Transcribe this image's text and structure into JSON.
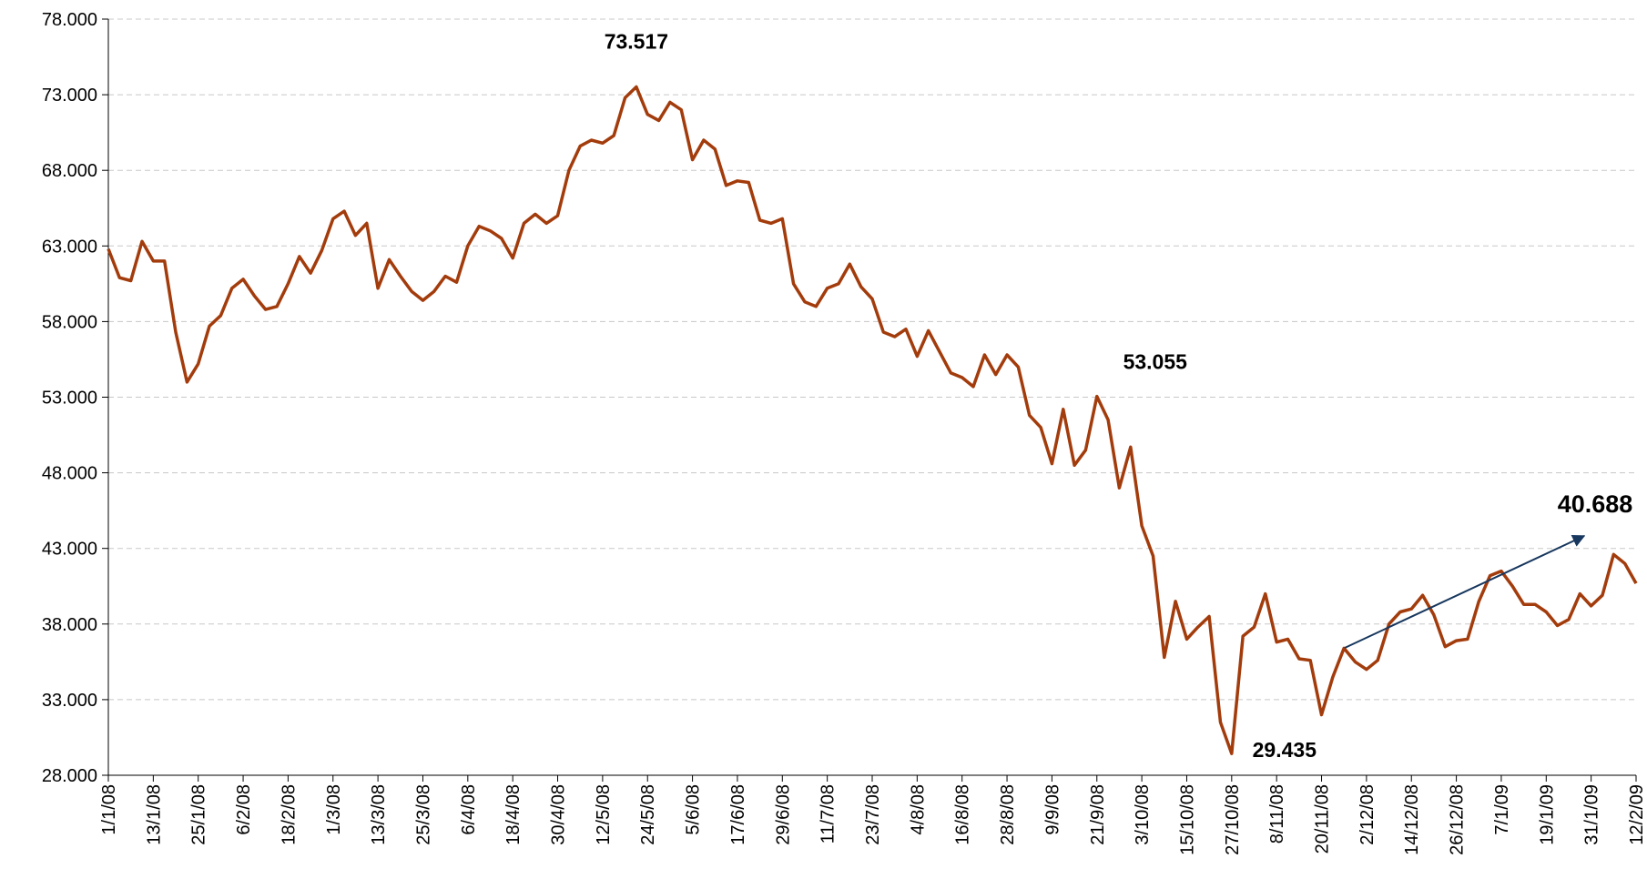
{
  "chart_data": {
    "type": "line",
    "categories": [
      "1/1/08",
      null,
      null,
      null,
      "13/1/08",
      null,
      null,
      null,
      "25/1/08",
      null,
      null,
      null,
      "6/2/08",
      null,
      null,
      null,
      "18/2/08",
      null,
      null,
      null,
      "1/3/08",
      null,
      null,
      null,
      "13/3/08",
      null,
      null,
      null,
      "25/3/08",
      null,
      null,
      null,
      "6/4/08",
      null,
      null,
      null,
      "18/4/08",
      null,
      null,
      null,
      "30/4/08",
      null,
      null,
      null,
      "12/5/08",
      null,
      null,
      null,
      "24/5/08",
      null,
      null,
      null,
      "5/6/08",
      null,
      null,
      null,
      "17/6/08",
      null,
      null,
      null,
      "29/6/08",
      null,
      null,
      null,
      "11/7/08",
      null,
      null,
      null,
      "23/7/08",
      null,
      null,
      null,
      "4/8/08",
      null,
      null,
      null,
      "16/8/08",
      null,
      null,
      null,
      "28/8/08",
      null,
      null,
      null,
      "9/9/08",
      null,
      null,
      null,
      "21/9/08",
      null,
      null,
      null,
      "3/10/08",
      null,
      null,
      null,
      "15/10/08",
      null,
      null,
      null,
      "27/10/08",
      null,
      null,
      null,
      "8/11/08",
      null,
      null,
      null,
      "20/11/08",
      null,
      null,
      null,
      "2/12/08",
      null,
      null,
      null,
      "14/12/08",
      null,
      null,
      null,
      "26/12/08",
      null,
      null,
      null,
      "7/1/09",
      null,
      null,
      null,
      "19/1/09",
      null,
      null,
      null,
      "31/1/09",
      null,
      null,
      null,
      "12/2/09"
    ],
    "series": [
      {
        "color": "#a33c0c",
        "values": [
          62.8,
          60.9,
          60.7,
          63.3,
          62.0,
          62.0,
          57.3,
          54.0,
          55.2,
          57.7,
          58.4,
          60.2,
          60.8,
          59.7,
          58.8,
          59.0,
          60.5,
          62.3,
          61.2,
          62.7,
          64.8,
          65.3,
          63.7,
          64.5,
          60.2,
          62.1,
          61.0,
          60.0,
          59.4,
          60.0,
          61.0,
          60.6,
          63.0,
          64.3,
          64.0,
          63.5,
          62.2,
          64.5,
          65.1,
          64.5,
          65.0,
          68.0,
          69.6,
          70.0,
          69.8,
          70.3,
          72.8,
          73.517,
          71.7,
          71.3,
          72.5,
          72.0,
          68.7,
          70.0,
          69.4,
          67.0,
          67.3,
          67.2,
          64.7,
          64.5,
          64.8,
          60.5,
          59.3,
          59.0,
          60.2,
          60.5,
          61.8,
          60.3,
          59.5,
          57.3,
          57.0,
          57.5,
          55.7,
          57.4,
          56.0,
          54.6,
          54.3,
          53.7,
          55.8,
          54.5,
          55.8,
          55.0,
          51.8,
          51.0,
          48.6,
          52.2,
          48.5,
          49.5,
          53.055,
          51.5,
          47.0,
          49.7,
          44.5,
          42.5,
          35.8,
          39.5,
          37.0,
          37.8,
          38.5,
          31.5,
          29.435,
          37.2,
          37.8,
          40.0,
          36.8,
          37.0,
          35.7,
          35.6,
          32.0,
          34.5,
          36.4,
          35.5,
          35.0,
          35.6,
          38.0,
          38.8,
          39.0,
          39.9,
          38.6,
          36.5,
          36.9,
          37.0,
          39.5,
          41.2,
          41.5,
          40.5,
          39.3,
          39.3,
          38.8,
          37.9,
          38.3,
          40.0,
          39.2,
          39.9,
          42.6,
          42.0,
          40.688
        ]
      }
    ],
    "ylim": [
      28,
      78
    ],
    "yticks": [
      {
        "value": 28,
        "label": "28.000"
      },
      {
        "value": 33,
        "label": "33.000"
      },
      {
        "value": 38,
        "label": "38.000"
      },
      {
        "value": 43,
        "label": "43.000"
      },
      {
        "value": 48,
        "label": "48.000"
      },
      {
        "value": 53,
        "label": "53.000"
      },
      {
        "value": 58,
        "label": "58.000"
      },
      {
        "value": 63,
        "label": "63.000"
      },
      {
        "value": 68,
        "label": "68.000"
      },
      {
        "value": 73,
        "label": "73.000"
      },
      {
        "value": 78,
        "label": "78.000"
      }
    ],
    "grid": true,
    "annotations": [
      73.517,
      53.055,
      29.435,
      40.688
    ]
  }
}
